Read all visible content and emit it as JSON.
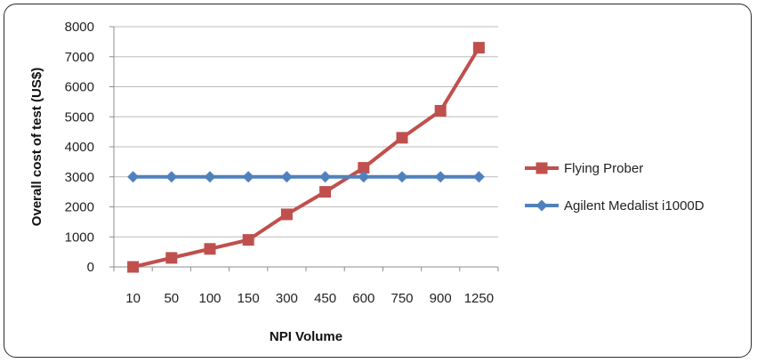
{
  "chart_data": {
    "type": "line",
    "categories": [
      "10",
      "50",
      "100",
      "150",
      "300",
      "450",
      "600",
      "750",
      "900",
      "1250"
    ],
    "series": [
      {
        "name": "Flying Prober",
        "color": "#c0504d",
        "marker": "square",
        "values": [
          0,
          300,
          600,
          900,
          1750,
          2500,
          3300,
          4300,
          5200,
          7300
        ]
      },
      {
        "name": "Agilent Medalist i1000D",
        "color": "#4f81bd",
        "marker": "diamond",
        "values": [
          3000,
          3000,
          3000,
          3000,
          3000,
          3000,
          3000,
          3000,
          3000,
          3000
        ]
      }
    ],
    "xlabel": "NPI Volume",
    "ylabel": "Overall cost of test (US$)",
    "ylim": [
      0,
      8000
    ],
    "yticks": [
      0,
      1000,
      2000,
      3000,
      4000,
      5000,
      6000,
      7000,
      8000
    ],
    "grid": "horizontal",
    "legend_position": "right"
  }
}
